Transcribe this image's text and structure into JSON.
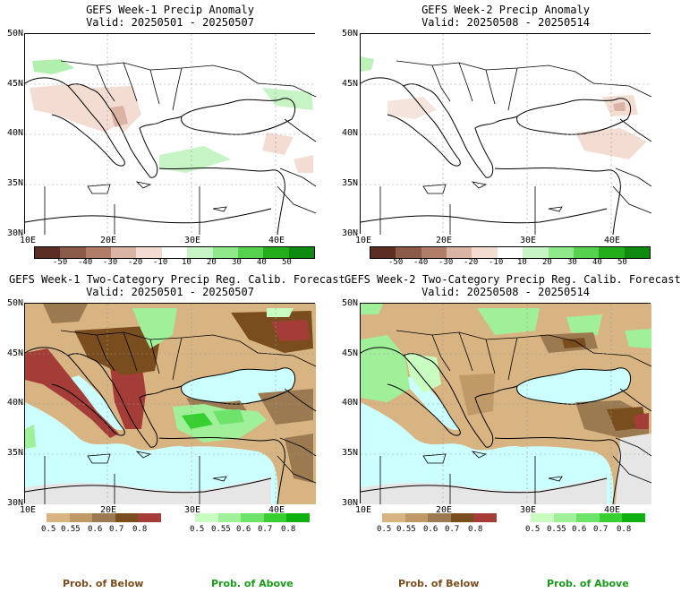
{
  "panels": [
    {
      "title": "GEFS Week-1 Precip Anomaly",
      "valid": "Valid: 20250501 - 20250507"
    },
    {
      "title": "GEFS Week-2 Precip Anomaly",
      "valid": "Valid: 20250508 - 20250514"
    },
    {
      "title": "GEFS Week-1 Two-Category Precip Reg. Calib. Forecast",
      "valid": "Valid: 20250501 - 20250507"
    },
    {
      "title": "GEFS Week-2 Two-Category Precip Reg. Calib. Forecast",
      "valid": "Valid: 20250508 - 20250514"
    }
  ],
  "axes": {
    "lat_labels": [
      "50N",
      "45N",
      "40N",
      "35N",
      "30N"
    ],
    "lon_labels": [
      "10E",
      "20E",
      "30E",
      "40E"
    ]
  },
  "anomaly_colorbar": {
    "labels": [
      "-50",
      "-40",
      "-30",
      "-20",
      "-10",
      "10",
      "20",
      "30",
      "40",
      "50"
    ],
    "colors": [
      "#5c2e23",
      "#8b5a48",
      "#b07d68",
      "#d9b3a3",
      "#f3ddd3",
      "#ffffff",
      "#c7f4c4",
      "#8fe88a",
      "#57d24f",
      "#23ad1a",
      "#0f8a10"
    ]
  },
  "below_colorbar": {
    "labels": [
      "0.5",
      "0.55",
      "0.6",
      "0.7",
      "0.8"
    ],
    "colors": [
      "#d8b482",
      "#c09a66",
      "#9b7a52",
      "#7a4d1f",
      "#a43d38"
    ]
  },
  "above_colorbar": {
    "labels": [
      "0.5",
      "0.55",
      "0.6",
      "0.7",
      "0.8"
    ],
    "colors": [
      "#c8ffc0",
      "#a0f09a",
      "#6ee36a",
      "#38d030",
      "#10b010"
    ]
  },
  "footer": {
    "below": "Prob. of Below",
    "above": "Prob. of Above"
  },
  "footer_colors": {
    "below": "#7a4d1f",
    "above": "#1a9a1a"
  }
}
